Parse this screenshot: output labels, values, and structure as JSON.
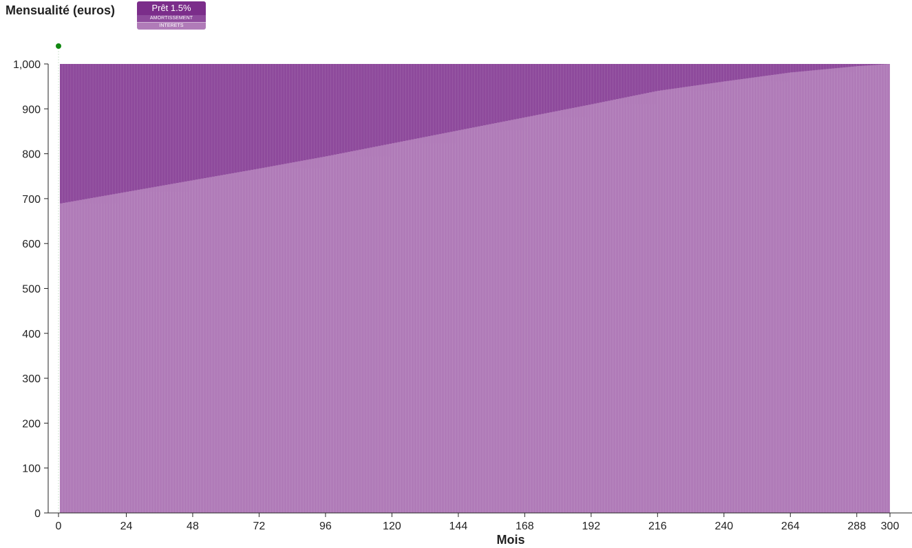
{
  "chart_data": {
    "type": "bar",
    "stacked": true,
    "title": "Mensualité (euros)",
    "xlabel": "Mois",
    "ylabel": "",
    "ylim": [
      0,
      1000
    ],
    "xlim": [
      0,
      300
    ],
    "x_ticks": [
      "0",
      "24",
      "48",
      "72",
      "96",
      "120",
      "144",
      "168",
      "192",
      "216",
      "240",
      "264",
      "288",
      "300"
    ],
    "y_ticks": [
      "0",
      "100",
      "200",
      "300",
      "400",
      "500",
      "600",
      "700",
      "800",
      "900",
      "1,000"
    ],
    "legend_placement": "top-left",
    "grid": false,
    "x": [
      0,
      24,
      48,
      72,
      96,
      120,
      144,
      168,
      192,
      216,
      240,
      264,
      288,
      300
    ],
    "series": [
      {
        "name": "AMORTISSEMENT",
        "color": "#b07bb8",
        "values": [
          689,
          715,
          741,
          767,
          794,
          823,
          852,
          881,
          910,
          940,
          961,
          981,
          995,
          1000
        ]
      },
      {
        "name": "INTERETS",
        "color": "#8e4a9c",
        "values": [
          311,
          285,
          259,
          233,
          206,
          177,
          148,
          119,
          90,
          60,
          39,
          19,
          5,
          0
        ]
      }
    ]
  },
  "legend": {
    "loan_label": "Prêt 1.5%",
    "loan_color": "#7b2d8a",
    "amortissement_label": "AMORTISSEMENT",
    "interets_label": "INTERETS"
  }
}
